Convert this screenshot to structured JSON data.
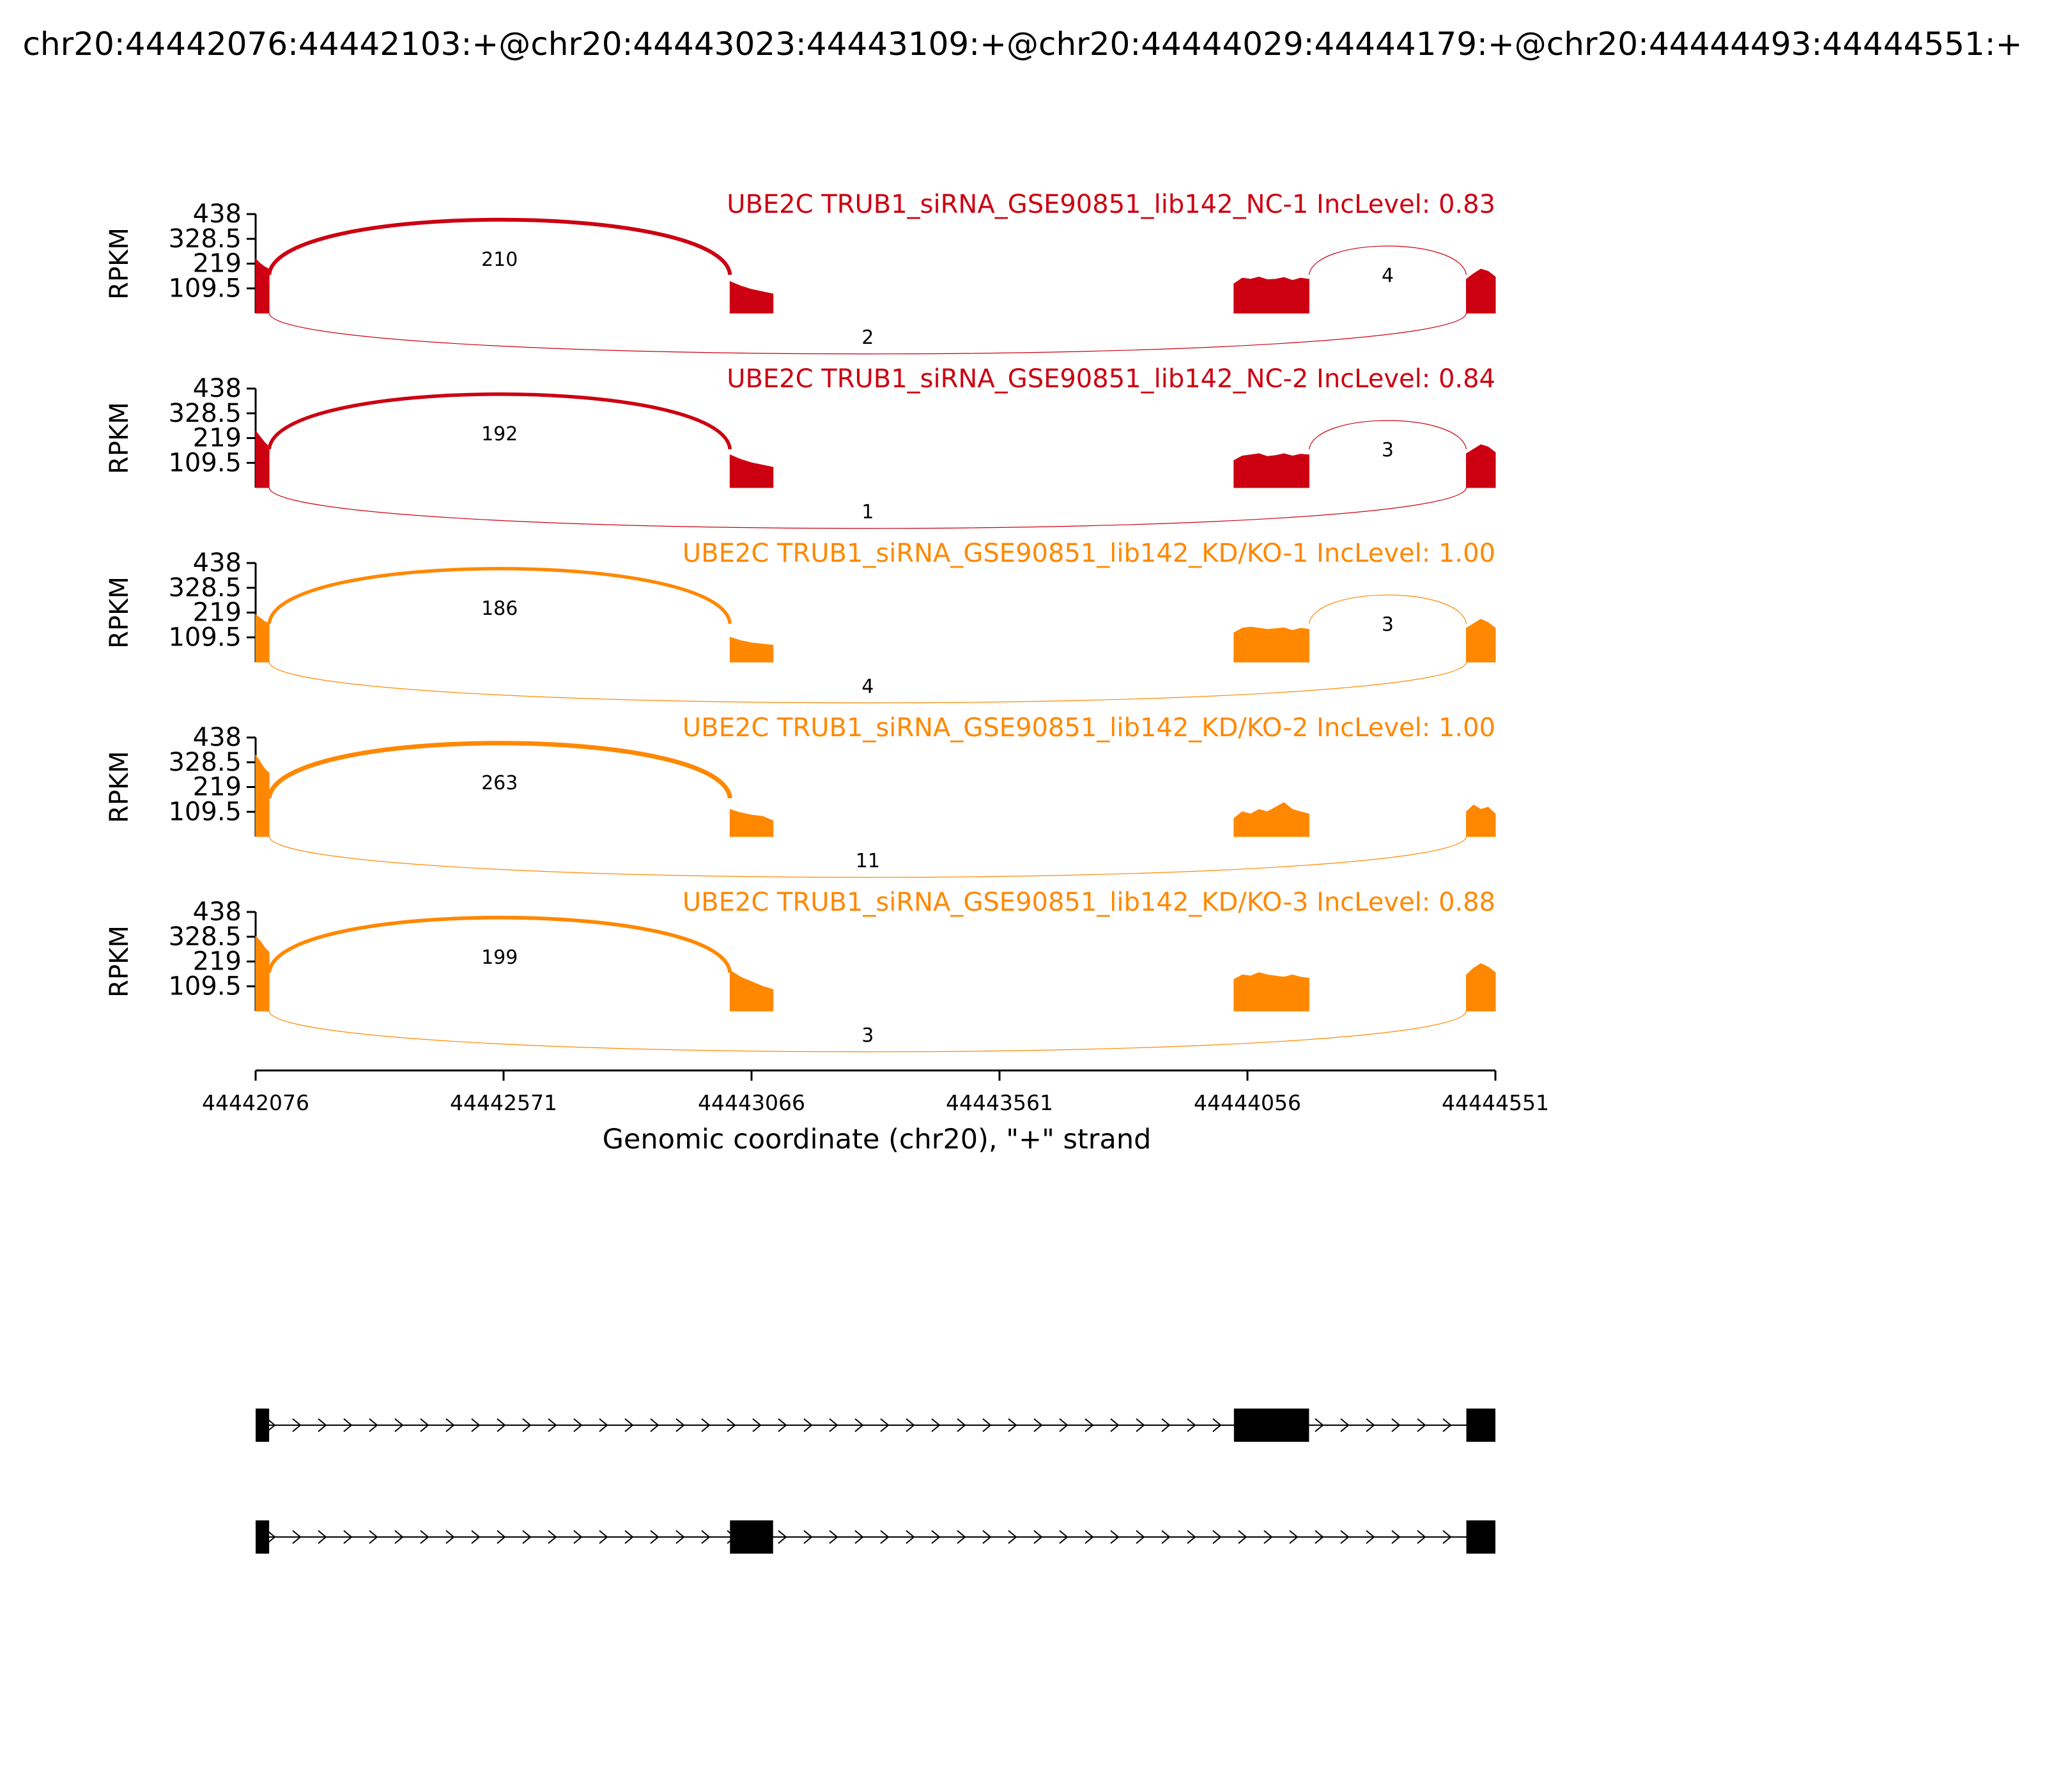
{
  "title": "chr20:44442076:44442103:+@chr20:44443023:44443109:+@chr20:44444029:44444179:+@chr20:44444493:44444551:+",
  "chart_data": {
    "type": "sashimi",
    "x_range": [
      44442076,
      44444551
    ],
    "x_ticks": [
      "44442076",
      "44442571",
      "44443066",
      "44443561",
      "44444056",
      "44444551"
    ],
    "xlabel": "Genomic coordinate (chr20), \"+\" strand",
    "ylabel": "RPKM",
    "y_range": [
      0,
      438
    ],
    "y_ticks": [
      "438",
      "328.5",
      "219",
      "109.5"
    ],
    "exons": [
      {
        "start": 44442076,
        "end": 44442103
      },
      {
        "start": 44443023,
        "end": 44443109
      },
      {
        "start": 44444029,
        "end": 44444179
      },
      {
        "start": 44444493,
        "end": 44444551
      }
    ],
    "tracks": [
      {
        "label": "UBE2C TRUB1_siRNA_GSE90851_lib142_NC-1 IncLevel: 0.83",
        "color": "#cc0011",
        "coverage": [
          {
            "exon": 0,
            "values": [
              240,
              220,
              205,
              195
            ]
          },
          {
            "exon": 1,
            "values": [
              140,
              120,
              105,
              95,
              85
            ]
          },
          {
            "exon": 2,
            "values": [
              130,
              155,
              150,
              160,
              148,
              150,
              158,
              145,
              155,
              150
            ]
          },
          {
            "exon": 3,
            "values": [
              150,
              175,
              195,
              185,
              160
            ]
          }
        ],
        "junctions": [
          {
            "label": "210",
            "from": 44442103,
            "to": 44443023,
            "side": "above"
          },
          {
            "label": "4",
            "from": 44444179,
            "to": 44444493,
            "side": "above"
          },
          {
            "label": "2",
            "from": 44442103,
            "to": 44444493,
            "side": "below"
          }
        ]
      },
      {
        "label": "UBE2C TRUB1_siRNA_GSE90851_lib142_NC-2 IncLevel: 0.84",
        "color": "#cc0011",
        "coverage": [
          {
            "exon": 0,
            "values": [
              250,
              225,
              200,
              180
            ]
          },
          {
            "exon": 1,
            "values": [
              145,
              125,
              110,
              100,
              90
            ]
          },
          {
            "exon": 2,
            "values": [
              120,
              140,
              145,
              150,
              138,
              142,
              150,
              140,
              148,
              145
            ]
          },
          {
            "exon": 3,
            "values": [
              150,
              170,
              190,
              180,
              155
            ]
          }
        ],
        "junctions": [
          {
            "label": "192",
            "from": 44442103,
            "to": 44443023,
            "side": "above"
          },
          {
            "label": "3",
            "from": 44444179,
            "to": 44444493,
            "side": "above"
          },
          {
            "label": "1",
            "from": 44442103,
            "to": 44444493,
            "side": "below"
          }
        ]
      },
      {
        "label": "UBE2C TRUB1_siRNA_GSE90851_lib142_KD/KO-1 IncLevel: 1.00",
        "color": "#ff8800",
        "coverage": [
          {
            "exon": 0,
            "values": [
              210,
              195,
              180,
              170
            ]
          },
          {
            "exon": 1,
            "values": [
              110,
              95,
              85,
              80,
              75
            ]
          },
          {
            "exon": 2,
            "values": [
              130,
              150,
              155,
              150,
              145,
              148,
              152,
              140,
              150,
              145
            ]
          },
          {
            "exon": 3,
            "values": [
              150,
              170,
              190,
              175,
              150
            ]
          }
        ],
        "junctions": [
          {
            "label": "186",
            "from": 44442103,
            "to": 44443023,
            "side": "above"
          },
          {
            "label": "3",
            "from": 44444179,
            "to": 44444493,
            "side": "above"
          },
          {
            "label": "4",
            "from": 44442103,
            "to": 44444493,
            "side": "below"
          }
        ]
      },
      {
        "label": "UBE2C TRUB1_siRNA_GSE90851_lib142_KD/KO-2 IncLevel: 1.00",
        "color": "#ff8800",
        "coverage": [
          {
            "exon": 0,
            "values": [
              360,
              330,
              300,
              280
            ]
          },
          {
            "exon": 1,
            "values": [
              120,
              105,
              95,
              90,
              70
            ]
          },
          {
            "exon": 2,
            "values": [
              80,
              110,
              100,
              120,
              110,
              130,
              150,
              120,
              110,
              100
            ]
          },
          {
            "exon": 3,
            "values": [
              110,
              140,
              120,
              130,
              100
            ]
          }
        ],
        "junctions": [
          {
            "label": "263",
            "from": 44442103,
            "to": 44443023,
            "side": "above"
          },
          {
            "label": "11",
            "from": 44442103,
            "to": 44444493,
            "side": "below"
          }
        ]
      },
      {
        "label": "UBE2C TRUB1_siRNA_GSE90851_lib142_KD/KO-3 IncLevel: 0.88",
        "color": "#ff8800",
        "coverage": [
          {
            "exon": 0,
            "values": [
              330,
              310,
              280,
              260
            ]
          },
          {
            "exon": 1,
            "values": [
              180,
              150,
              130,
              110,
              95
            ]
          },
          {
            "exon": 2,
            "values": [
              140,
              160,
              155,
              170,
              160,
              155,
              150,
              160,
              150,
              145
            ]
          },
          {
            "exon": 3,
            "values": [
              160,
              190,
              210,
              195,
              170
            ]
          }
        ],
        "junctions": [
          {
            "label": "199",
            "from": 44442103,
            "to": 44443023,
            "side": "above"
          },
          {
            "label": "3",
            "from": 44442103,
            "to": 44444493,
            "side": "below"
          }
        ]
      }
    ],
    "isoforms": [
      {
        "exons": [
          0,
          2,
          3
        ],
        "strand": "+"
      },
      {
        "exons": [
          0,
          1,
          3
        ],
        "strand": "+"
      }
    ]
  }
}
